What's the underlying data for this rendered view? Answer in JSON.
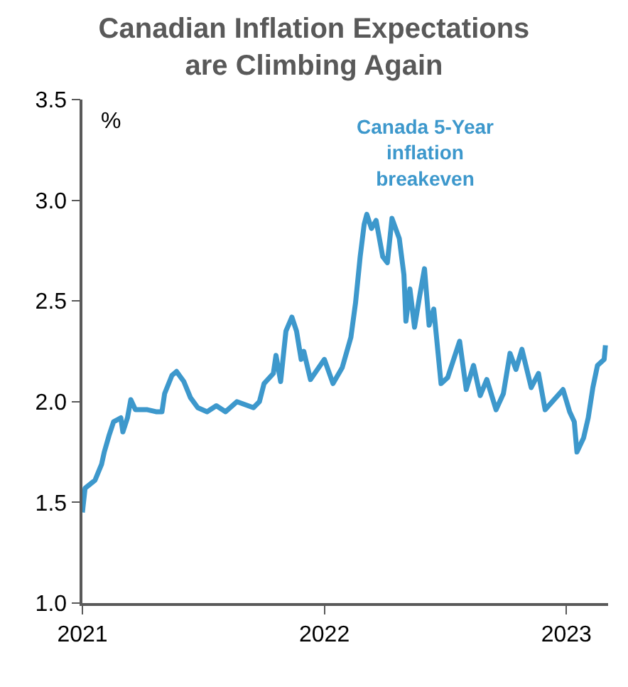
{
  "chart_data": {
    "type": "line",
    "title": "Canadian Inflation Expectations\nare Climbing Again",
    "ylabel": "%",
    "xlim": [
      "2021-01-01",
      "2023-03-05"
    ],
    "xticks": [
      {
        "value": "2021-01-01",
        "label": "2021"
      },
      {
        "value": "2022-01-01",
        "label": "2022"
      },
      {
        "value": "2023-01-01",
        "label": "2023"
      }
    ],
    "ylim": [
      1.0,
      3.5
    ],
    "yticks": [
      {
        "value": 1,
        "label": "1.0"
      },
      {
        "value": 1.5,
        "label": "1.5"
      },
      {
        "value": 2,
        "label": "2.0"
      },
      {
        "value": 2.5,
        "label": "2.5"
      },
      {
        "value": 3,
        "label": "3.0"
      },
      {
        "value": 3.5,
        "label": "3.5"
      }
    ],
    "legend": false,
    "line_style": "solid",
    "marker": "none",
    "x": [
      "2021-01-01",
      "2021-01-05",
      "2021-01-20",
      "2021-01-30",
      "2021-02-03",
      "2021-02-10",
      "2021-02-17",
      "2021-02-28",
      "2021-03-03",
      "2021-03-10",
      "2021-03-15",
      "2021-03-22",
      "2021-04-09",
      "2021-04-22",
      "2021-05-01",
      "2021-05-05",
      "2021-05-16",
      "2021-05-23",
      "2021-06-03",
      "2021-06-13",
      "2021-06-24",
      "2021-07-08",
      "2021-07-22",
      "2021-08-05",
      "2021-08-22",
      "2021-09-16",
      "2021-09-25",
      "2021-10-02",
      "2021-10-16",
      "2021-10-20",
      "2021-10-27",
      "2021-11-04",
      "2021-11-13",
      "2021-11-20",
      "2021-11-27",
      "2021-12-01",
      "2021-12-11",
      "2022-01-01",
      "2022-01-14",
      "2022-01-28",
      "2022-02-10",
      "2022-02-17",
      "2022-02-24",
      "2022-03-02",
      "2022-03-06",
      "2022-03-13",
      "2022-03-20",
      "2022-03-30",
      "2022-04-06",
      "2022-04-13",
      "2022-04-24",
      "2022-05-01",
      "2022-05-04",
      "2022-05-10",
      "2022-05-17",
      "2022-05-25",
      "2022-06-01",
      "2022-06-08",
      "2022-06-15",
      "2022-06-26",
      "2022-07-06",
      "2022-07-17",
      "2022-07-24",
      "2022-08-03",
      "2022-08-14",
      "2022-08-24",
      "2022-09-03",
      "2022-09-17",
      "2022-09-28",
      "2022-10-08",
      "2022-10-17",
      "2022-10-26",
      "2022-11-09",
      "2022-11-20",
      "2022-11-30",
      "2022-12-27",
      "2023-01-06",
      "2023-01-13",
      "2023-01-17",
      "2023-01-27",
      "2023-02-03",
      "2023-02-10",
      "2023-02-17",
      "2023-02-27",
      "2023-03-01"
    ],
    "series": [
      {
        "name": "Canada 5-Year\ninflation\nbreakeven",
        "color": "#3d98cc",
        "values": [
          1.45,
          1.57,
          1.61,
          1.69,
          1.75,
          1.83,
          1.9,
          1.92,
          1.85,
          1.92,
          2.01,
          1.96,
          1.96,
          1.95,
          1.95,
          2.04,
          2.13,
          2.15,
          2.1,
          2.02,
          1.97,
          1.95,
          1.98,
          1.95,
          2.0,
          1.97,
          2.0,
          2.09,
          2.14,
          2.23,
          2.1,
          2.35,
          2.42,
          2.35,
          2.21,
          2.25,
          2.11,
          2.21,
          2.09,
          2.17,
          2.32,
          2.49,
          2.72,
          2.88,
          2.93,
          2.86,
          2.9,
          2.72,
          2.69,
          2.91,
          2.81,
          2.63,
          2.4,
          2.56,
          2.37,
          2.53,
          2.66,
          2.38,
          2.46,
          2.09,
          2.12,
          2.23,
          2.3,
          2.06,
          2.18,
          2.03,
          2.11,
          1.96,
          2.04,
          2.24,
          2.16,
          2.26,
          2.07,
          2.14,
          1.96,
          2.06,
          1.95,
          1.9,
          1.75,
          1.82,
          1.92,
          2.07,
          2.18,
          2.21,
          2.28
        ]
      }
    ]
  }
}
